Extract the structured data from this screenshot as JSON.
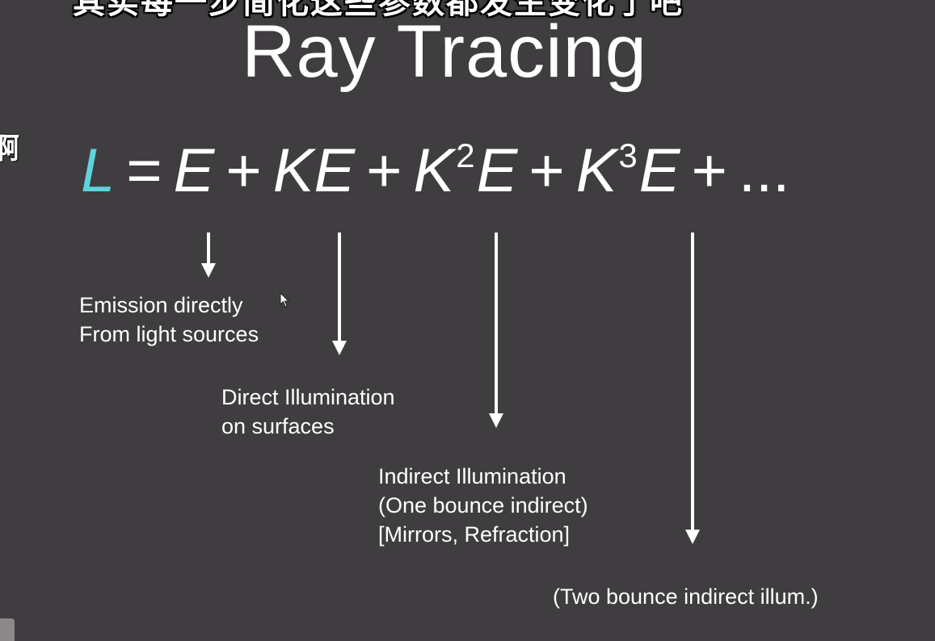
{
  "overlay": {
    "subtitle_fragment": "其实每一步简化这些参数都发生变化了吧",
    "side_fragment": "啊"
  },
  "slide": {
    "title": "Ray Tracing",
    "equation": {
      "L": "L",
      "eq": "=",
      "plus": "+",
      "E": "E",
      "KE": "KE",
      "K": "K",
      "exp2": "2",
      "exp3": "3",
      "ellipsis": "..."
    },
    "labels": {
      "emission": [
        "Emission directly",
        "From light sources"
      ],
      "direct": [
        "Direct Illumination",
        "on surfaces"
      ],
      "indirect": [
        "Indirect Illumination",
        "(One bounce indirect)",
        "[Mirrors, Refraction]"
      ],
      "two_bounce": "(Two bounce indirect illum.)"
    }
  },
  "colors": {
    "background": "#3f3d3f",
    "accent_L": "#5dd3dc",
    "text": "#ffffff"
  }
}
